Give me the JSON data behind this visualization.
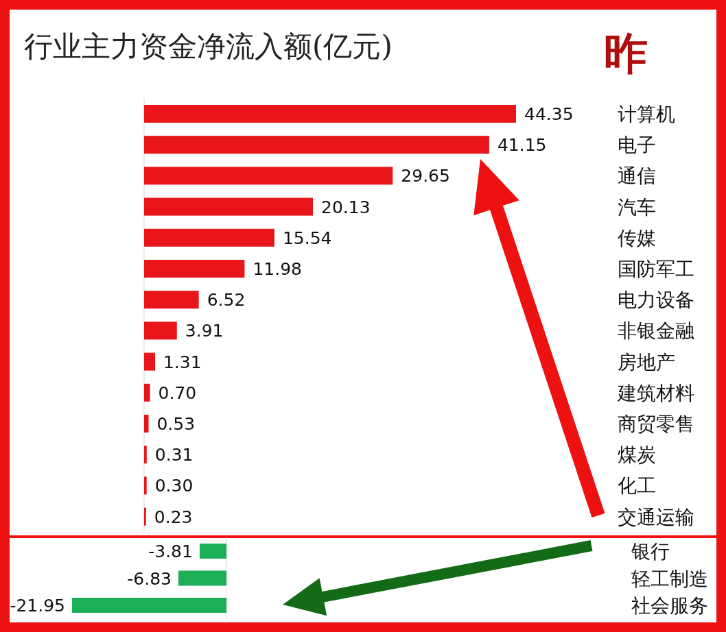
{
  "chart_data": [
    {
      "type": "bar",
      "orientation": "horizontal",
      "title": "行业主力资金净流入额(亿元)",
      "annotations": [
        "昨"
      ],
      "color": "#e8161b",
      "categories": [
        "计算机",
        "电子",
        "通信",
        "汽车",
        "传媒",
        "国防军工",
        "电力设备",
        "非银金融",
        "房地产",
        "建筑材料",
        "商贸零售",
        "煤炭",
        "化工",
        "交通运输"
      ],
      "values": [
        44.35,
        41.15,
        29.65,
        20.13,
        15.54,
        11.98,
        6.52,
        3.91,
        1.31,
        0.7,
        0.53,
        0.31,
        0.3,
        0.23
      ],
      "value_labels": [
        "44.35",
        "41.15",
        "29.65",
        "20.13",
        "15.54",
        "11.98",
        "6.52",
        "3.91",
        "1.31",
        "0.70",
        "0.53",
        "0.31",
        "0.30",
        "0.23"
      ]
    },
    {
      "type": "bar",
      "orientation": "horizontal",
      "color": "#1dae58",
      "categories": [
        "银行",
        "轻工制造",
        "社会服务"
      ],
      "values": [
        -3.81,
        -6.83,
        -21.95
      ],
      "value_labels": [
        "-3.81",
        "-6.83",
        "-21.95"
      ]
    }
  ]
}
